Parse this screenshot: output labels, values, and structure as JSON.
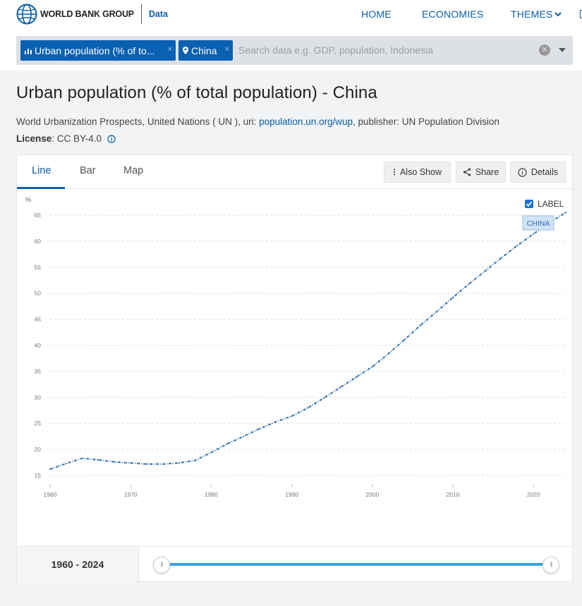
{
  "header": {
    "brand": "WORLD BANK GROUP",
    "section": "Data",
    "nav": [
      "HOME",
      "ECONOMIES",
      "THEMES"
    ]
  },
  "search": {
    "indicator_chip": "Urban population (% of to...",
    "country_chip": "China",
    "placeholder": "Search data e.g. GDP, population, Indonesia"
  },
  "page": {
    "title": "Urban population (% of total population) - China",
    "source_prefix": "World Urbanization Prospects, United Nations ( UN ), uri: ",
    "source_link": "population.un.org/wup",
    "source_suffix": ", publisher: UN Population Division",
    "license_label": "License",
    "license_value": " : CC BY-4.0"
  },
  "tabs": [
    "Line",
    "Bar",
    "Map"
  ],
  "toolbar": {
    "also_show": "Also Show",
    "share": "Share",
    "details": "Details"
  },
  "label_toggle": {
    "text": "LABEL",
    "checked": true
  },
  "range": {
    "label": "1960 - 2024"
  },
  "colors": {
    "accent": "#0a5ea8",
    "line": "#2a6fb0",
    "slider": "#3aa0e8"
  },
  "chart_data": {
    "type": "line",
    "ylabel": "%",
    "ylim": [
      15,
      65
    ],
    "yticks": [
      15,
      20,
      25,
      30,
      35,
      40,
      45,
      50,
      55,
      60,
      65
    ],
    "xlim": [
      1960,
      2024
    ],
    "xticks": [
      1960,
      1970,
      1980,
      1990,
      2000,
      2010,
      2020
    ],
    "grid": true,
    "series": [
      {
        "name": "CHINA",
        "x": [
          1960,
          1962,
          1964,
          1966,
          1968,
          1970,
          1972,
          1974,
          1976,
          1978,
          1980,
          1982,
          1984,
          1986,
          1988,
          1990,
          1992,
          1994,
          1996,
          1998,
          2000,
          2002,
          2004,
          2006,
          2008,
          2010,
          2012,
          2014,
          2016,
          2018,
          2020,
          2022,
          2024
        ],
        "y": [
          16.2,
          17.3,
          18.3,
          18.0,
          17.6,
          17.4,
          17.2,
          17.2,
          17.4,
          17.9,
          19.4,
          21.1,
          22.5,
          24.0,
          25.3,
          26.4,
          28.0,
          29.9,
          31.9,
          33.9,
          35.9,
          38.4,
          41.1,
          43.9,
          46.5,
          49.2,
          51.8,
          54.3,
          56.8,
          59.2,
          61.4,
          63.6,
          65.5
        ]
      }
    ]
  }
}
